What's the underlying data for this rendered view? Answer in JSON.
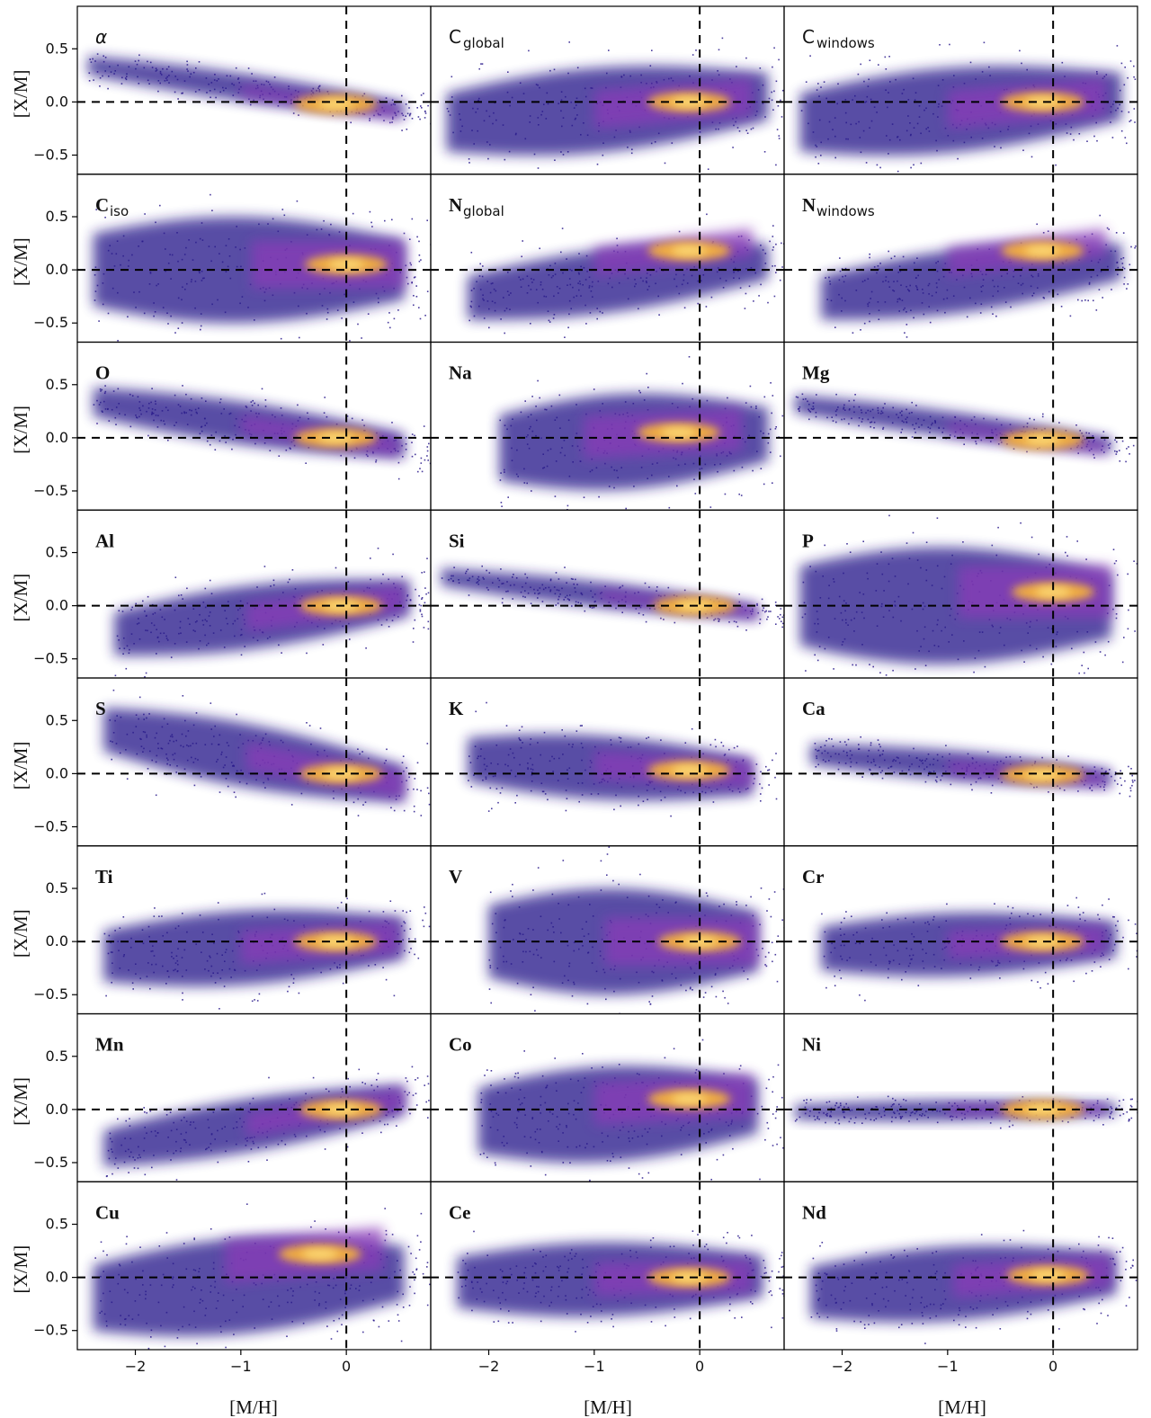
{
  "chart_data": {
    "type": "scatter",
    "layout": "small multiples grid, 8 rows x 3 columns, shared axes",
    "xlabel": "[M/H]",
    "ylabel": "[X/M]",
    "xlim": [
      -2.55,
      0.8
    ],
    "ylim": [
      -0.68,
      0.9
    ],
    "xticks": [
      -2,
      -1,
      0
    ],
    "xtick_labels": [
      "−2",
      "−1",
      "0"
    ],
    "yticks": [
      -0.5,
      0.0,
      0.5
    ],
    "ytick_labels": [
      "−0.5",
      "0.0",
      "0.5"
    ],
    "reference_lines": [
      {
        "orientation": "vertical",
        "at": 0,
        "style": "dashed"
      },
      {
        "orientation": "horizontal",
        "at": 0,
        "style": "dashed"
      }
    ],
    "colormap": "plasma (density)",
    "colors": {
      "low": "#2a1a8c",
      "mid": "#8a3bb8",
      "high": "#f7b33a",
      "peak": "#fde080"
    },
    "grid": false,
    "legend": "none",
    "panels": [
      {
        "label": "α",
        "style": "sans-italic",
        "shape": {
          "x0": -2.45,
          "x1": 0.55,
          "slope": -0.14,
          "w": 0.13,
          "core": [
            -0.1,
            -0.02
          ]
        }
      },
      {
        "label": "C",
        "sub": "global",
        "style": "sans",
        "shape": {
          "x0": -2.4,
          "x1": 0.65,
          "slope": 0.08,
          "w": 0.4,
          "core": [
            -0.1,
            0.0
          ]
        }
      },
      {
        "label": "C",
        "sub": "windows",
        "style": "sans",
        "shape": {
          "x0": -2.4,
          "x1": 0.65,
          "slope": 0.08,
          "w": 0.4,
          "core": [
            -0.1,
            0.0
          ]
        }
      },
      {
        "label": "C",
        "sub": "iso",
        "style": "serif-sub",
        "shape": {
          "x0": -2.4,
          "x1": 0.55,
          "slope": 0.0,
          "w": 0.5,
          "core": [
            0.0,
            0.05
          ]
        }
      },
      {
        "label": "N",
        "sub": "global",
        "style": "serif-sub",
        "shape": {
          "x0": -2.2,
          "x1": 0.65,
          "slope": 0.12,
          "w": 0.3,
          "core": [
            -0.1,
            0.18
          ]
        }
      },
      {
        "label": "N",
        "sub": "windows",
        "style": "serif-sub",
        "shape": {
          "x0": -2.2,
          "x1": 0.65,
          "slope": 0.12,
          "w": 0.3,
          "core": [
            -0.1,
            0.18
          ]
        }
      },
      {
        "label": "O",
        "style": "serif",
        "shape": {
          "x0": -2.4,
          "x1": 0.55,
          "slope": -0.14,
          "w": 0.2,
          "core": [
            -0.1,
            0.0
          ]
        }
      },
      {
        "label": "Na",
        "style": "serif",
        "shape": {
          "x0": -1.9,
          "x1": 0.65,
          "slope": 0.05,
          "w": 0.45,
          "core": [
            -0.2,
            0.05
          ]
        }
      },
      {
        "label": "Mg",
        "style": "serif",
        "shape": {
          "x0": -2.45,
          "x1": 0.55,
          "slope": -0.13,
          "w": 0.12,
          "core": [
            -0.1,
            -0.02
          ]
        }
      },
      {
        "label": "Al",
        "style": "serif",
        "shape": {
          "x0": -2.2,
          "x1": 0.6,
          "slope": 0.12,
          "w": 0.3,
          "core": [
            -0.05,
            0.0
          ]
        }
      },
      {
        "label": "Si",
        "style": "serif",
        "shape": {
          "x0": -2.45,
          "x1": 0.55,
          "slope": -0.11,
          "w": 0.12,
          "core": [
            -0.05,
            0.0
          ]
        }
      },
      {
        "label": "P",
        "style": "serif",
        "shape": {
          "x0": -2.4,
          "x1": 0.55,
          "slope": 0.0,
          "w": 0.55,
          "core": [
            0.0,
            0.13
          ]
        }
      },
      {
        "label": "S",
        "style": "serif",
        "shape": {
          "x0": -2.3,
          "x1": 0.55,
          "slope": -0.18,
          "w": 0.3,
          "core": [
            -0.05,
            0.0
          ]
        }
      },
      {
        "label": "K",
        "style": "serif",
        "shape": {
          "x0": -2.2,
          "x1": 0.5,
          "slope": -0.06,
          "w": 0.3,
          "core": [
            -0.1,
            0.03
          ]
        }
      },
      {
        "label": "Ca",
        "style": "serif",
        "shape": {
          "x0": -2.3,
          "x1": 0.55,
          "slope": -0.08,
          "w": 0.14,
          "core": [
            -0.1,
            -0.01
          ]
        }
      },
      {
        "label": "Ti",
        "style": "serif",
        "shape": {
          "x0": -2.3,
          "x1": 0.55,
          "slope": 0.06,
          "w": 0.35,
          "core": [
            -0.1,
            0.0
          ]
        }
      },
      {
        "label": "V",
        "style": "serif",
        "shape": {
          "x0": -2.0,
          "x1": 0.55,
          "slope": 0.0,
          "w": 0.5,
          "core": [
            0.0,
            0.0
          ]
        }
      },
      {
        "label": "Cr",
        "style": "serif",
        "shape": {
          "x0": -2.2,
          "x1": 0.6,
          "slope": 0.03,
          "w": 0.3,
          "core": [
            -0.1,
            0.0
          ]
        }
      },
      {
        "label": "Mn",
        "style": "serif",
        "shape": {
          "x0": -2.3,
          "x1": 0.55,
          "slope": 0.16,
          "w": 0.25,
          "core": [
            -0.05,
            0.0
          ]
        }
      },
      {
        "label": "Co",
        "style": "serif",
        "shape": {
          "x0": -2.1,
          "x1": 0.55,
          "slope": 0.05,
          "w": 0.45,
          "core": [
            -0.1,
            0.1
          ]
        }
      },
      {
        "label": "Ni",
        "style": "serif",
        "shape": {
          "x0": -2.45,
          "x1": 0.6,
          "slope": 0.01,
          "w": 0.1,
          "core": [
            -0.1,
            0.0
          ]
        }
      },
      {
        "label": "Cu",
        "style": "serif",
        "shape": {
          "x0": -2.4,
          "x1": 0.55,
          "slope": 0.08,
          "w": 0.45,
          "core": [
            -0.25,
            0.22
          ]
        }
      },
      {
        "label": "Ce",
        "style": "serif",
        "shape": {
          "x0": -2.3,
          "x1": 0.6,
          "slope": 0.02,
          "w": 0.35,
          "core": [
            -0.1,
            0.0
          ]
        }
      },
      {
        "label": "Nd",
        "style": "serif",
        "shape": {
          "x0": -2.3,
          "x1": 0.6,
          "slope": 0.06,
          "w": 0.35,
          "core": [
            -0.05,
            0.02
          ]
        }
      }
    ]
  }
}
